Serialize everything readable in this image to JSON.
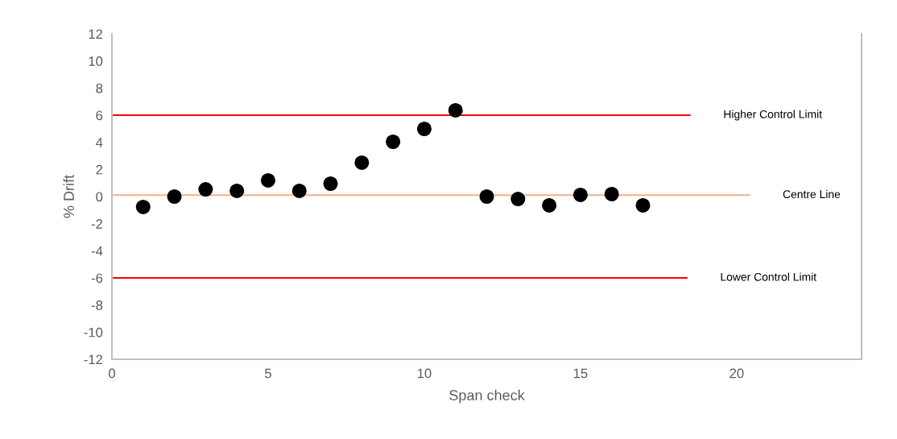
{
  "chart_data": {
    "type": "scatter",
    "xlabel": "Span check",
    "ylabel": "% Drift",
    "xlim": [
      0,
      24
    ],
    "xticks": [
      0,
      5,
      10,
      15,
      20
    ],
    "ylim": [
      -12,
      12
    ],
    "yticks": [
      -12,
      -10,
      -8,
      -6,
      -4,
      -2,
      0,
      2,
      4,
      6,
      8,
      10,
      12
    ],
    "grid": false,
    "legend": false,
    "series": [
      {
        "marker": "circle",
        "color": "#000000",
        "x": [
          1,
          2,
          3,
          4,
          5,
          6,
          7,
          8,
          9,
          10,
          11,
          12,
          13,
          14,
          15,
          16,
          17
        ],
        "values": [
          -0.77,
          0,
          0.53,
          0.42,
          1.19,
          0.42,
          0.95,
          2.5,
          4.04,
          4.99,
          6.36,
          0,
          -0.18,
          -0.65,
          0.12,
          0.18,
          -0.65
        ]
      },
      {
        "type": "line",
        "name": "Higher Control Limit",
        "color": "#ff0000",
        "x": [
          0,
          18.5
        ],
        "values": [
          6,
          6
        ]
      },
      {
        "type": "line",
        "name": "Centre Line",
        "color": "#f4b183",
        "x": [
          0,
          20.4
        ],
        "values": [
          0.1,
          0.1
        ]
      },
      {
        "type": "line",
        "name": "Lower Control Limit",
        "color": "#ff0000",
        "x": [
          0,
          18.4
        ],
        "values": [
          -6,
          -6
        ]
      }
    ]
  }
}
